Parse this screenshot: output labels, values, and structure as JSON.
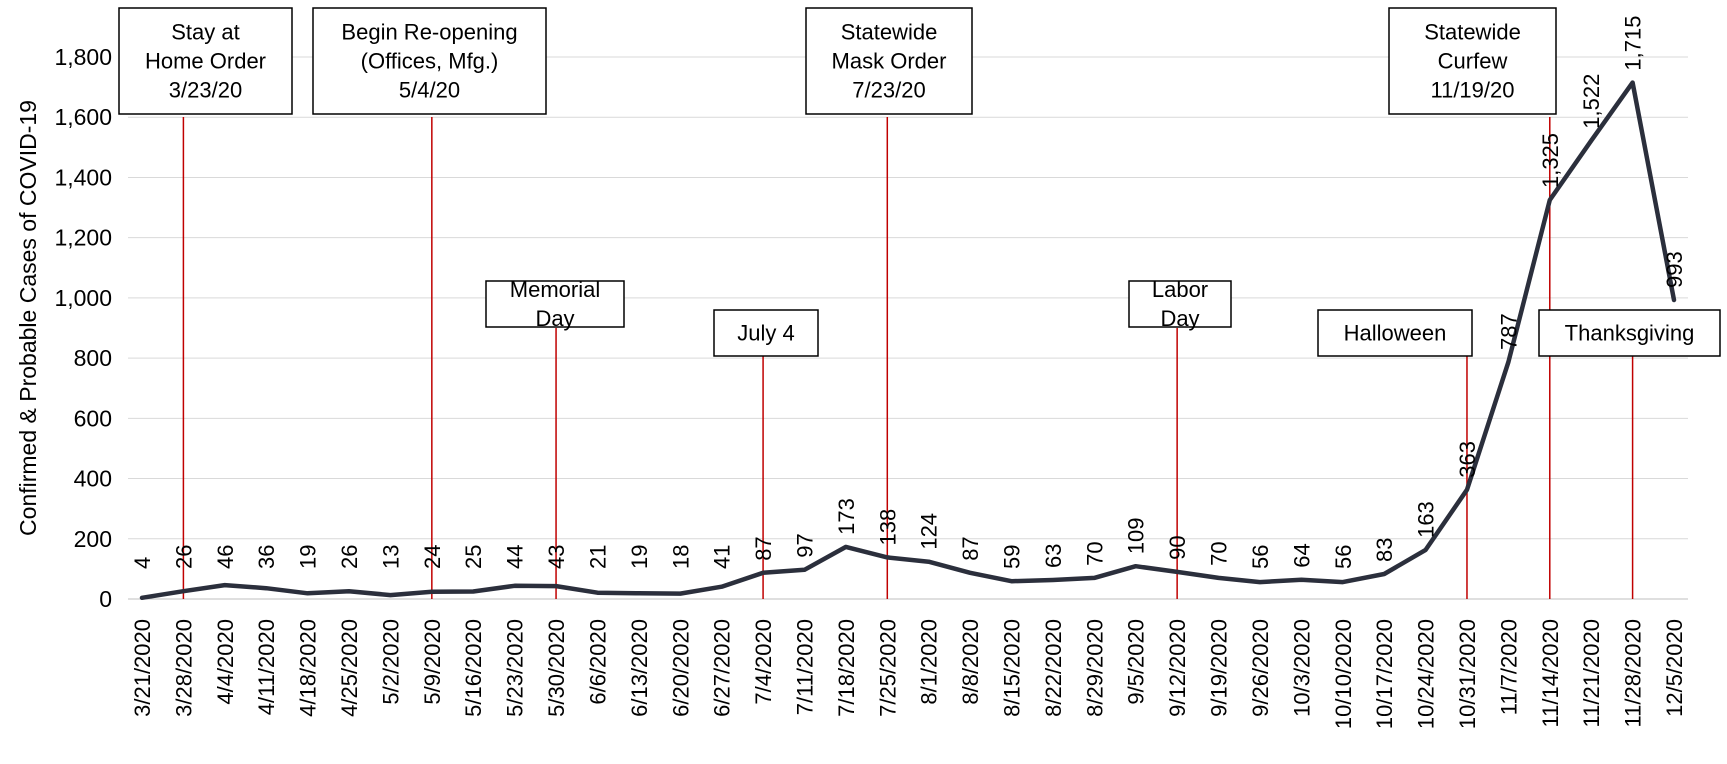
{
  "chart_data": {
    "type": "line",
    "title": "",
    "ylabel": "Confirmed & Probable Cases of COVID-19",
    "xlabel": "",
    "ylim": [
      0,
      1800
    ],
    "yticks": [
      0,
      200,
      400,
      600,
      800,
      1000,
      1200,
      1400,
      1600,
      1800
    ],
    "ytick_labels": [
      "0",
      "200",
      "400",
      "600",
      "800",
      "1,000",
      "1,200",
      "1,400",
      "1,600",
      "1,800"
    ],
    "grid": true,
    "legend": "none",
    "line_color": "#2b2f3c",
    "event_color": "#c00000",
    "categories": [
      "3/21/2020",
      "3/28/2020",
      "4/4/2020",
      "4/11/2020",
      "4/18/2020",
      "4/25/2020",
      "5/2/2020",
      "5/9/2020",
      "5/16/2020",
      "5/23/2020",
      "5/30/2020",
      "6/6/2020",
      "6/13/2020",
      "6/20/2020",
      "6/27/2020",
      "7/4/2020",
      "7/11/2020",
      "7/18/2020",
      "7/25/2020",
      "8/1/2020",
      "8/8/2020",
      "8/15/2020",
      "8/22/2020",
      "8/29/2020",
      "9/5/2020",
      "9/12/2020",
      "9/19/2020",
      "9/26/2020",
      "10/3/2020",
      "10/10/2020",
      "10/17/2020",
      "10/24/2020",
      "10/31/2020",
      "11/7/2020",
      "11/14/2020",
      "11/21/2020",
      "11/28/2020",
      "12/5/2020"
    ],
    "values": [
      4,
      26,
      46,
      36,
      19,
      26,
      13,
      24,
      25,
      44,
      43,
      21,
      19,
      18,
      41,
      87,
      97,
      173,
      138,
      124,
      87,
      59,
      63,
      70,
      109,
      90,
      70,
      56,
      64,
      56,
      83,
      163,
      363,
      787,
      1325,
      1522,
      1715,
      993
    ],
    "data_labels": [
      "4",
      "26",
      "46",
      "36",
      "19",
      "26",
      "13",
      "24",
      "25",
      "44",
      "43",
      "21",
      "19",
      "18",
      "41",
      "87",
      "97",
      "173",
      "138",
      "124",
      "87",
      "59",
      "63",
      "70",
      "109",
      "90",
      "70",
      "56",
      "64",
      "56",
      "83",
      "163",
      "363",
      "787",
      "1,325",
      "1,522",
      "1,715",
      "993"
    ],
    "events": [
      {
        "lines": [
          "Stay at",
          "Home Order",
          "3/23/20"
        ],
        "x_index": 1
      },
      {
        "lines": [
          "Begin Re-opening",
          "(Offices, Mfg.)",
          "5/4/20"
        ],
        "x_index": 7
      },
      {
        "lines": [
          "Memorial",
          "Day"
        ],
        "x_index": 10
      },
      {
        "lines": [
          "July 4"
        ],
        "x_index": 15
      },
      {
        "lines": [
          "Statewide",
          "Mask Order",
          "7/23/20"
        ],
        "x_index": 18
      },
      {
        "lines": [
          "Labor",
          "Day"
        ],
        "x_index": 25
      },
      {
        "lines": [
          "Halloween"
        ],
        "x_index": 32
      },
      {
        "lines": [
          "Statewide",
          "Curfew",
          "11/19/20"
        ],
        "x_index": 34
      },
      {
        "lines": [
          "Thanksgiving"
        ],
        "x_index": 36
      }
    ]
  }
}
